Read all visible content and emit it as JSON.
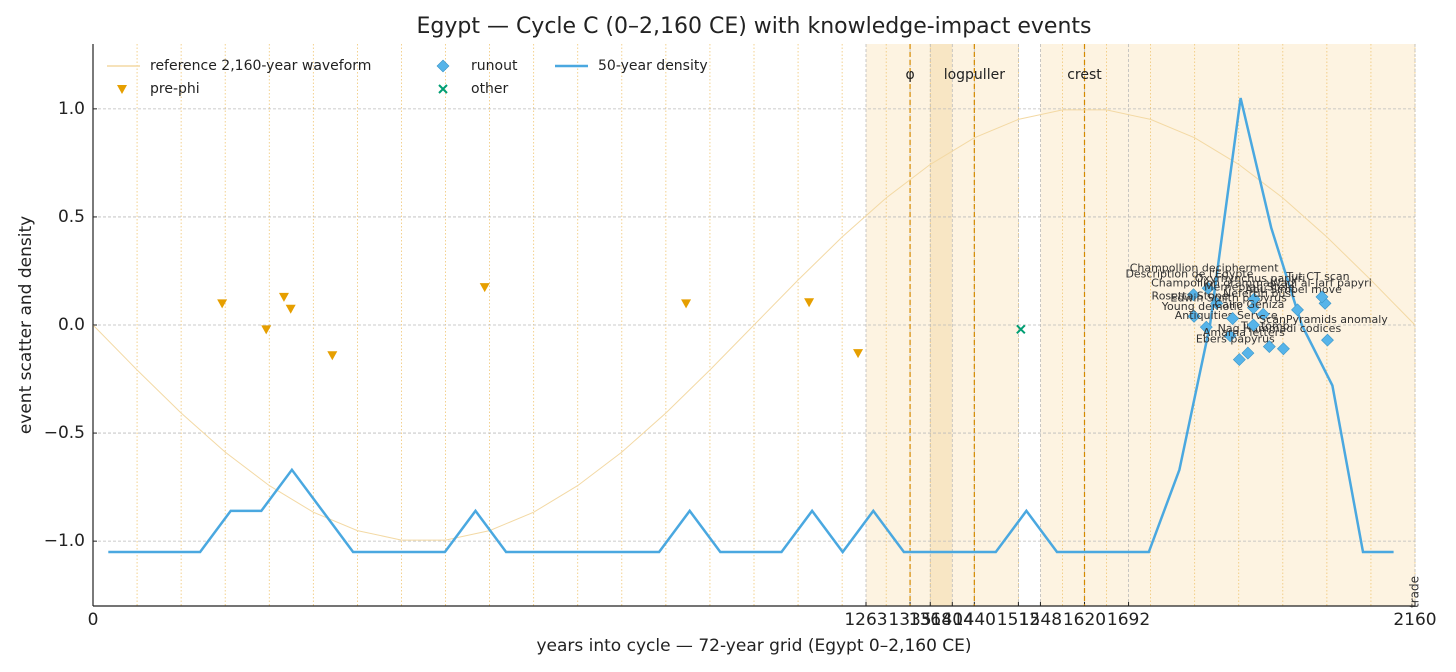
{
  "chart_data": {
    "type": "scatter",
    "title": "Egypt — Cycle C (0–2,160 CE) with knowledge-impact events",
    "xlabel": "years into cycle — 72-year grid (Egypt 0–2,160 CE)",
    "ylabel": "event scatter and density",
    "xlim": [
      0,
      2160
    ],
    "ylim": [
      -1.3,
      1.3
    ],
    "xticks": [
      0,
      1263,
      1335,
      1368,
      1404,
      1440,
      1512,
      1548,
      1620,
      1692,
      2160
    ],
    "yticks": [
      {
        "value": -1.0,
        "label": "−1.0"
      },
      {
        "value": -0.5,
        "label": "−0.5"
      },
      {
        "value": 0.0,
        "label": "0.0"
      },
      {
        "value": 0.5,
        "label": "0.5"
      },
      {
        "value": 1.0,
        "label": "1.0"
      }
    ],
    "grid": true,
    "x_grid_step": 72,
    "spans": [
      {
        "x": [
          1263,
          1512
        ],
        "color": "#fdf3e1"
      },
      {
        "x": [
          1548,
          2160
        ],
        "color": "#fdf3e1"
      },
      {
        "x": [
          1368,
          1404
        ],
        "color": "#f8e6c4"
      }
    ],
    "markers": [
      {
        "x": 1335,
        "label": "φ"
      },
      {
        "x": 1440,
        "label": "logpuller"
      },
      {
        "x": 1620,
        "label": "crest"
      }
    ],
    "edge_annotation": {
      "x": 2160,
      "text": "trade"
    },
    "waveform": {
      "name": "reference 2,160-year waveform",
      "color": "#f3d9a4",
      "x": [
        0,
        72,
        144,
        216,
        288,
        360,
        432,
        504,
        576,
        648,
        720,
        792,
        864,
        936,
        1008,
        1080,
        1152,
        1224,
        1296,
        1368,
        1440,
        1512,
        1584,
        1656,
        1728,
        1800,
        1872,
        1944,
        2016,
        2088,
        2160
      ],
      "values": [
        0,
        -0.208,
        -0.407,
        -0.588,
        -0.743,
        -0.866,
        -0.951,
        -0.995,
        -0.995,
        -0.951,
        -0.866,
        -0.743,
        -0.588,
        -0.407,
        -0.208,
        0,
        0.208,
        0.407,
        0.588,
        0.743,
        0.866,
        0.951,
        0.995,
        0.995,
        0.951,
        0.866,
        0.743,
        0.588,
        0.407,
        0.208,
        0
      ]
    },
    "density": {
      "name": "50-year density",
      "color": "#4aa8e0",
      "x": [
        25,
        75,
        125,
        175,
        225,
        275,
        325,
        375,
        425,
        475,
        525,
        575,
        625,
        675,
        725,
        775,
        825,
        875,
        925,
        975,
        1025,
        1075,
        1125,
        1175,
        1225,
        1275,
        1325,
        1375,
        1425,
        1475,
        1525,
        1575,
        1625,
        1675,
        1725,
        1775,
        1825,
        1875,
        1925,
        1975,
        2025,
        2075,
        2125
      ],
      "values": [
        -1.05,
        -1.05,
        -1.05,
        -1.05,
        -0.86,
        -0.86,
        -0.67,
        -0.86,
        -1.05,
        -1.05,
        -1.05,
        -1.05,
        -0.86,
        -1.05,
        -1.05,
        -1.05,
        -1.05,
        -1.05,
        -1.05,
        -0.86,
        -1.05,
        -1.05,
        -1.05,
        -0.86,
        -1.05,
        -0.86,
        -1.05,
        -1.05,
        -1.05,
        -1.05,
        -0.86,
        -1.05,
        -1.05,
        -1.05,
        -1.05,
        -0.67,
        0.0,
        1.05,
        0.45,
        0.0,
        -0.28,
        -1.05,
        -1.05
      ]
    },
    "series": [
      {
        "name": "pre-phi",
        "color": "#e69f00",
        "marker": "triangle",
        "x": [
          211,
          283,
          312,
          323,
          391,
          640,
          969,
          1170,
          1250
        ],
        "values": [
          0.1,
          -0.02,
          0.13,
          0.075,
          -0.14,
          0.175,
          0.1,
          0.105,
          -0.13
        ]
      },
      {
        "name": "runout",
        "color": "#56b4e9",
        "marker": "diamond",
        "x": [
          1798,
          1799,
          1822,
          1836,
          1819,
          1858,
          1862,
          1873,
          1887,
          1897,
          1896,
          1912,
          1922,
          1945,
          1968,
          2013,
          2008,
          2017,
          1896
        ],
        "values": [
          0.14,
          0.04,
          0.17,
          0.1,
          -0.01,
          -0.05,
          0.03,
          -0.16,
          -0.13,
          0.12,
          0.08,
          0.05,
          -0.1,
          -0.11,
          0.07,
          0.1,
          0.13,
          -0.07,
          0.0
        ],
        "labels": [
          "Description de l'Egypte",
          "Rosetta Stone",
          "Champollion decipherment",
          "Champollion grammar",
          "Young demotic",
          "Antiquities Service",
          "Edwin Smith papyrus",
          "Ebers papyrus",
          "Amarna letters",
          "Oxyrhynchus papyri",
          "Merneptah Stele",
          "Nefertiti bust",
          "Tut tomb",
          "Nag Hammadi codices",
          "Abu Simbel move",
          "Wadi al-Jarf papyri",
          "Tut CT scan",
          "ScanPyramids anomaly",
          "Cairo Geniza"
        ]
      },
      {
        "name": "other",
        "color": "#009e73",
        "marker": "x",
        "x": [
          1516
        ],
        "values": [
          -0.02
        ]
      }
    ]
  }
}
